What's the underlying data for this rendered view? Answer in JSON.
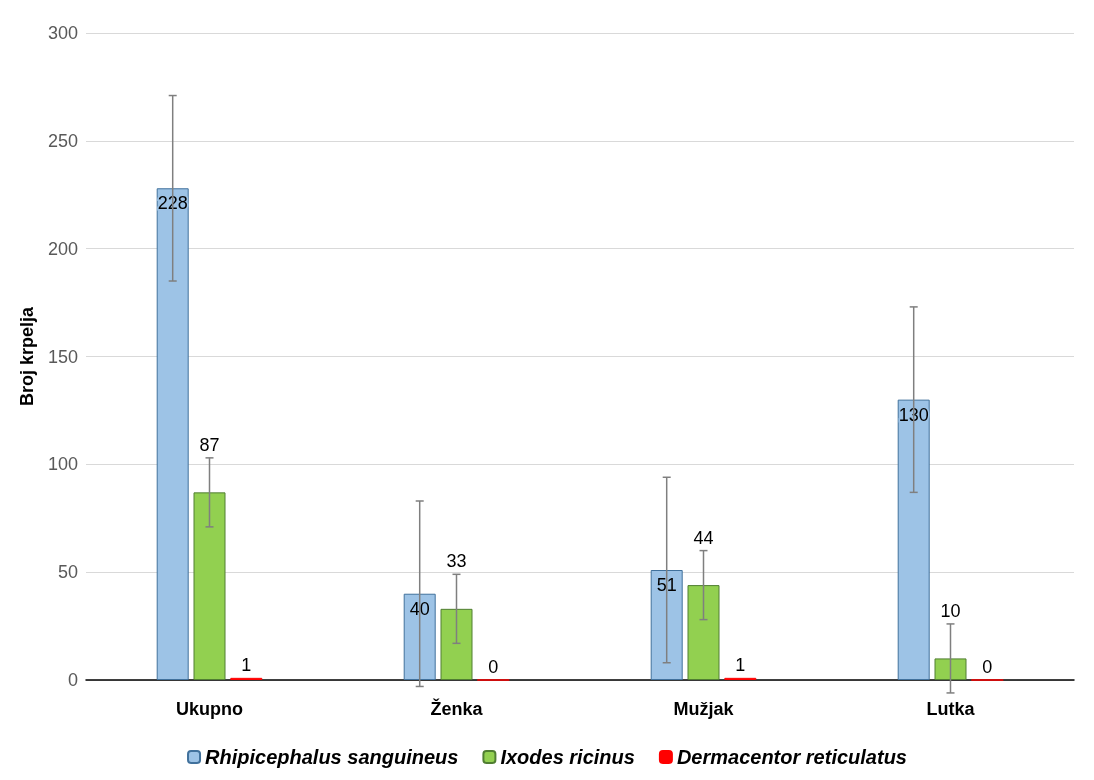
{
  "chart_data": {
    "type": "bar",
    "ylabel": "Broj krpelja",
    "categories": [
      "Ukupno",
      "Ženka",
      "Mužjak",
      "Lutka"
    ],
    "series": [
      {
        "name": "Rhipicephalus sanguineus",
        "color": "#9dc3e6",
        "values": [
          228,
          40,
          51,
          130
        ],
        "errors": [
          43,
          43,
          43,
          43
        ]
      },
      {
        "name": "Ixodes ricinus",
        "color": "#92d050",
        "values": [
          87,
          33,
          44,
          10
        ],
        "errors": [
          16,
          16,
          16,
          16
        ]
      },
      {
        "name": "Dermacentor reticulatus",
        "color": "#ff0000",
        "values": [
          1,
          0,
          1,
          0
        ],
        "errors": [
          null,
          null,
          null,
          null
        ]
      }
    ],
    "ylim": [
      0,
      300
    ],
    "yticks": [
      0,
      50,
      100,
      150,
      200,
      250,
      300
    ],
    "grid": "y",
    "legend": "bottom",
    "data_labels": true
  }
}
